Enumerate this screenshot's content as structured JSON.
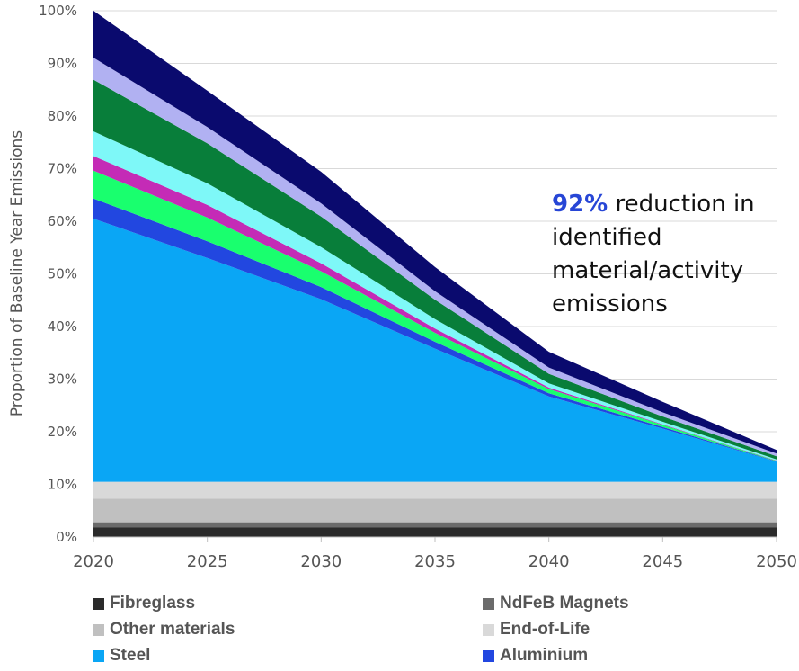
{
  "chart_data": {
    "type": "area",
    "stacked": true,
    "x": [
      2020,
      2025,
      2030,
      2035,
      2040,
      2045,
      2050
    ],
    "ylabel": "Proportion of Baseline Year Emissions",
    "xlabel": "",
    "ylim": [
      0,
      100
    ],
    "y_ticks": [
      "0%",
      "10%",
      "20%",
      "30%",
      "40%",
      "50%",
      "60%",
      "70%",
      "80%",
      "90%",
      "100%"
    ],
    "x_ticks": [
      "2020",
      "2025",
      "2030",
      "2035",
      "2040",
      "2045",
      "2050"
    ],
    "grid": true,
    "series": [
      {
        "name": "Fibreglass",
        "color": "#2b2b2b",
        "values": [
          1.8,
          1.8,
          1.8,
          1.8,
          1.8,
          1.8,
          1.8
        ],
        "in_legend": true
      },
      {
        "name": "NdFeB Magnets",
        "color": "#6b6b6b",
        "values": [
          1.0,
          1.0,
          1.0,
          1.0,
          1.0,
          1.0,
          1.0
        ],
        "in_legend": true
      },
      {
        "name": "Other materials",
        "color": "#c0c0c0",
        "values": [
          4.5,
          4.5,
          4.5,
          4.5,
          4.5,
          4.5,
          4.5
        ],
        "in_legend": true
      },
      {
        "name": "End-of-Life",
        "color": "#d9d9d9",
        "values": [
          3.2,
          3.2,
          3.2,
          3.2,
          3.2,
          3.2,
          3.2
        ],
        "in_legend": true
      },
      {
        "name": "Steel",
        "color": "#0aa6f5",
        "values": [
          50.0,
          42.5,
          34.7,
          25.3,
          16.2,
          10.1,
          3.8
        ],
        "in_legend": true
      },
      {
        "name": "Aluminium",
        "color": "#2247e0",
        "values": [
          3.8,
          3.2,
          2.3,
          1.3,
          0.6,
          0.3,
          0.1
        ],
        "in_legend": true
      },
      {
        "name": "",
        "color": "#19ff6e",
        "values": [
          5.3,
          4.5,
          3.0,
          1.7,
          0.8,
          0.4,
          0.1
        ],
        "in_legend": false
      },
      {
        "name": "",
        "color": "#c42bb6",
        "values": [
          2.8,
          2.4,
          1.5,
          0.8,
          0.3,
          0.1,
          0.05
        ],
        "in_legend": false
      },
      {
        "name": "",
        "color": "#7ef8f8",
        "values": [
          4.7,
          4.1,
          3.1,
          1.8,
          0.8,
          0.5,
          0.2
        ],
        "in_legend": false
      },
      {
        "name": "",
        "color": "#087e3a",
        "values": [
          9.8,
          7.6,
          5.8,
          3.7,
          1.8,
          1.0,
          0.6
        ],
        "in_legend": false
      },
      {
        "name": "",
        "color": "#b1b1f2",
        "values": [
          4.2,
          3.1,
          2.5,
          1.6,
          1.2,
          0.8,
          0.5
        ],
        "in_legend": false
      },
      {
        "name": "",
        "color": "#0a0a6e",
        "values": [
          8.9,
          6.9,
          6.0,
          4.6,
          3.0,
          2.0,
          0.7
        ],
        "in_legend": false
      }
    ],
    "annotation": {
      "highlight": "92%",
      "text": " reduction in identified material/activity emissions"
    },
    "legend_position": "bottom"
  }
}
